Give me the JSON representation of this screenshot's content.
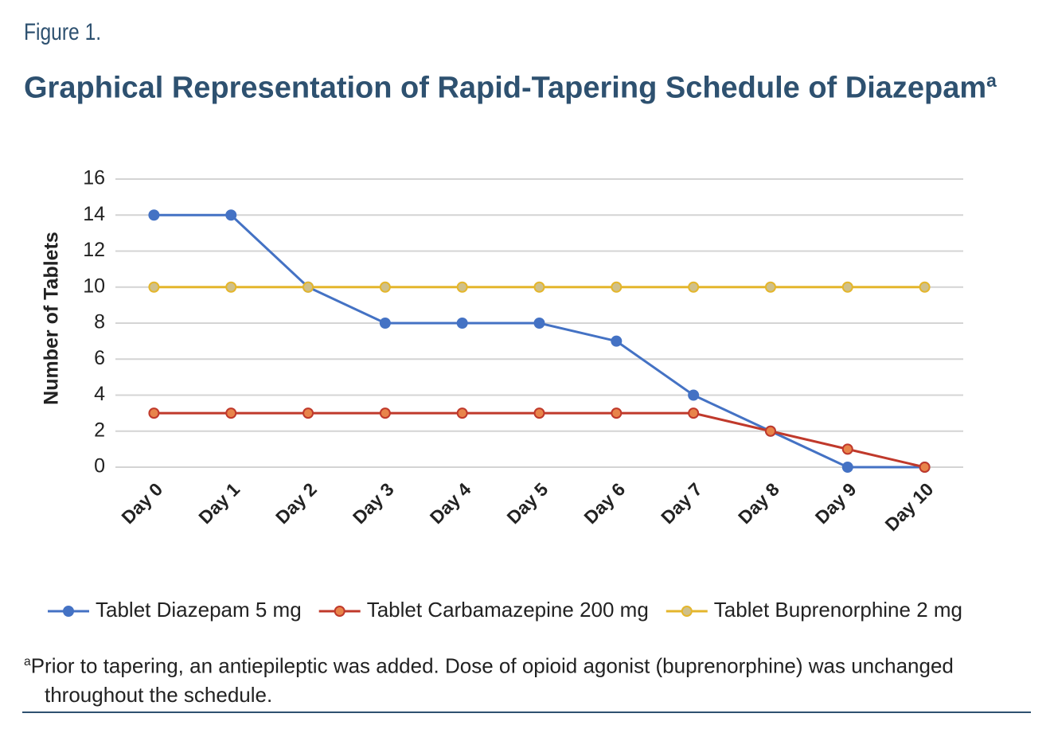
{
  "chart_data": {
    "type": "line",
    "figure_label": "Figure 1.",
    "title": "Graphical Representation of Rapid-Tapering Schedule of Diazepam",
    "title_superscript": "a",
    "y_label": "Number of Tablets",
    "categories": [
      "Day 0",
      "Day 1",
      "Day 2",
      "Day 3",
      "Day 4",
      "Day 5",
      "Day 6",
      "Day 7",
      "Day 8",
      "Day 9",
      "Day 10"
    ],
    "series": [
      {
        "name": "Tablet Diazepam 5 mg",
        "color": "#4472c4",
        "marker_fill": "#4472c4",
        "values": [
          14,
          14,
          10,
          8,
          8,
          8,
          7,
          4,
          2,
          0,
          0
        ]
      },
      {
        "name": "Tablet Carbamazepine 200 mg",
        "color": "#c0392b",
        "marker_fill": "#e8844a",
        "values": [
          3,
          3,
          3,
          3,
          3,
          3,
          3,
          3,
          2,
          1,
          0
        ]
      },
      {
        "name": "Tablet Buprenorphine 2 mg",
        "color": "#e4b62c",
        "marker_fill": "#cfc08a",
        "values": [
          10,
          10,
          10,
          10,
          10,
          10,
          10,
          10,
          10,
          10,
          10
        ]
      }
    ],
    "ylim": [
      0,
      16
    ],
    "yticks": [
      0,
      2,
      4,
      6,
      8,
      10,
      12,
      14,
      16
    ],
    "grid": true,
    "legend": "bottom",
    "footnote_marker": "a",
    "footnote": "Prior to tapering, an antiepileptic was added. Dose of opioid agonist (buprenorphine) was unchanged throughout the schedule."
  }
}
